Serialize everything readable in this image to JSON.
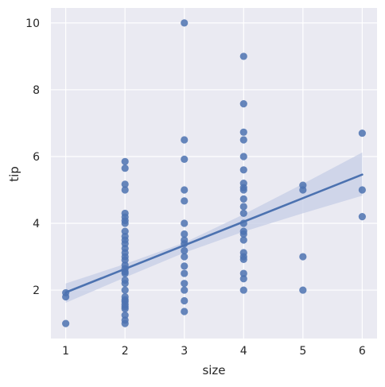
{
  "chart_data": {
    "type": "scatter",
    "xlabel": "size",
    "ylabel": "tip",
    "xlim": [
      0.75,
      6.25
    ],
    "ylim": [
      0.55,
      10.45
    ],
    "x_ticks": [
      1,
      2,
      3,
      4,
      5,
      6
    ],
    "y_ticks": [
      2,
      4,
      6,
      8,
      10
    ],
    "grid": true,
    "colors": {
      "background": "#eaeaf2",
      "grid": "#ffffff",
      "points": "#4c72b0",
      "regression_line": "#4c72b0",
      "ci_band": "#c5cde6"
    },
    "points": [
      {
        "x": 1,
        "y": 1.0
      },
      {
        "x": 1,
        "y": 1.8
      },
      {
        "x": 1,
        "y": 1.92
      },
      {
        "x": 2,
        "y": 1.0
      },
      {
        "x": 2,
        "y": 1.1
      },
      {
        "x": 2,
        "y": 1.25
      },
      {
        "x": 2,
        "y": 1.44
      },
      {
        "x": 2,
        "y": 1.5
      },
      {
        "x": 2,
        "y": 1.57
      },
      {
        "x": 2,
        "y": 1.66
      },
      {
        "x": 2,
        "y": 1.71
      },
      {
        "x": 2,
        "y": 1.8
      },
      {
        "x": 2,
        "y": 2.0
      },
      {
        "x": 2,
        "y": 2.2
      },
      {
        "x": 2,
        "y": 2.3
      },
      {
        "x": 2,
        "y": 2.5
      },
      {
        "x": 2,
        "y": 2.55
      },
      {
        "x": 2,
        "y": 2.64
      },
      {
        "x": 2,
        "y": 2.75
      },
      {
        "x": 2,
        "y": 2.9
      },
      {
        "x": 2,
        "y": 3.0
      },
      {
        "x": 2,
        "y": 3.12
      },
      {
        "x": 2,
        "y": 3.25
      },
      {
        "x": 2,
        "y": 3.39
      },
      {
        "x": 2,
        "y": 3.5
      },
      {
        "x": 2,
        "y": 3.61
      },
      {
        "x": 2,
        "y": 3.76
      },
      {
        "x": 2,
        "y": 4.0
      },
      {
        "x": 2,
        "y": 4.08
      },
      {
        "x": 2,
        "y": 4.19
      },
      {
        "x": 2,
        "y": 4.3
      },
      {
        "x": 2,
        "y": 5.0
      },
      {
        "x": 2,
        "y": 5.17
      },
      {
        "x": 2,
        "y": 5.65
      },
      {
        "x": 2,
        "y": 5.85
      },
      {
        "x": 3,
        "y": 1.36
      },
      {
        "x": 3,
        "y": 1.68
      },
      {
        "x": 3,
        "y": 2.0
      },
      {
        "x": 3,
        "y": 2.2
      },
      {
        "x": 3,
        "y": 2.5
      },
      {
        "x": 3,
        "y": 2.72
      },
      {
        "x": 3,
        "y": 3.0
      },
      {
        "x": 3,
        "y": 3.18
      },
      {
        "x": 3,
        "y": 3.39
      },
      {
        "x": 3,
        "y": 3.5
      },
      {
        "x": 3,
        "y": 3.68
      },
      {
        "x": 3,
        "y": 4.0
      },
      {
        "x": 3,
        "y": 4.67
      },
      {
        "x": 3,
        "y": 5.0
      },
      {
        "x": 3,
        "y": 5.92
      },
      {
        "x": 3,
        "y": 6.5
      },
      {
        "x": 3,
        "y": 10.0
      },
      {
        "x": 4,
        "y": 2.0
      },
      {
        "x": 4,
        "y": 2.34
      },
      {
        "x": 4,
        "y": 2.5
      },
      {
        "x": 4,
        "y": 2.92
      },
      {
        "x": 4,
        "y": 3.0
      },
      {
        "x": 4,
        "y": 3.12
      },
      {
        "x": 4,
        "y": 3.5
      },
      {
        "x": 4,
        "y": 3.68
      },
      {
        "x": 4,
        "y": 3.76
      },
      {
        "x": 4,
        "y": 4.0
      },
      {
        "x": 4,
        "y": 4.3
      },
      {
        "x": 4,
        "y": 4.5
      },
      {
        "x": 4,
        "y": 4.73
      },
      {
        "x": 4,
        "y": 5.0
      },
      {
        "x": 4,
        "y": 5.07
      },
      {
        "x": 4,
        "y": 5.2
      },
      {
        "x": 4,
        "y": 5.6
      },
      {
        "x": 4,
        "y": 6.0
      },
      {
        "x": 4,
        "y": 6.5
      },
      {
        "x": 4,
        "y": 6.73
      },
      {
        "x": 4,
        "y": 7.58
      },
      {
        "x": 4,
        "y": 9.0
      },
      {
        "x": 5,
        "y": 2.0
      },
      {
        "x": 5,
        "y": 3.0
      },
      {
        "x": 5,
        "y": 5.0
      },
      {
        "x": 5,
        "y": 5.14
      },
      {
        "x": 6,
        "y": 4.2
      },
      {
        "x": 6,
        "y": 5.0
      },
      {
        "x": 6,
        "y": 6.7
      }
    ],
    "regression": {
      "x": [
        1,
        6
      ],
      "y": [
        1.93,
        5.46
      ]
    },
    "confidence_band": {
      "x": [
        1,
        2,
        3,
        4,
        5,
        6
      ],
      "lower": [
        1.62,
        2.38,
        3.12,
        3.75,
        4.3,
        4.83
      ],
      "upper": [
        2.2,
        2.78,
        3.42,
        4.27,
        5.18,
        6.12
      ]
    }
  }
}
